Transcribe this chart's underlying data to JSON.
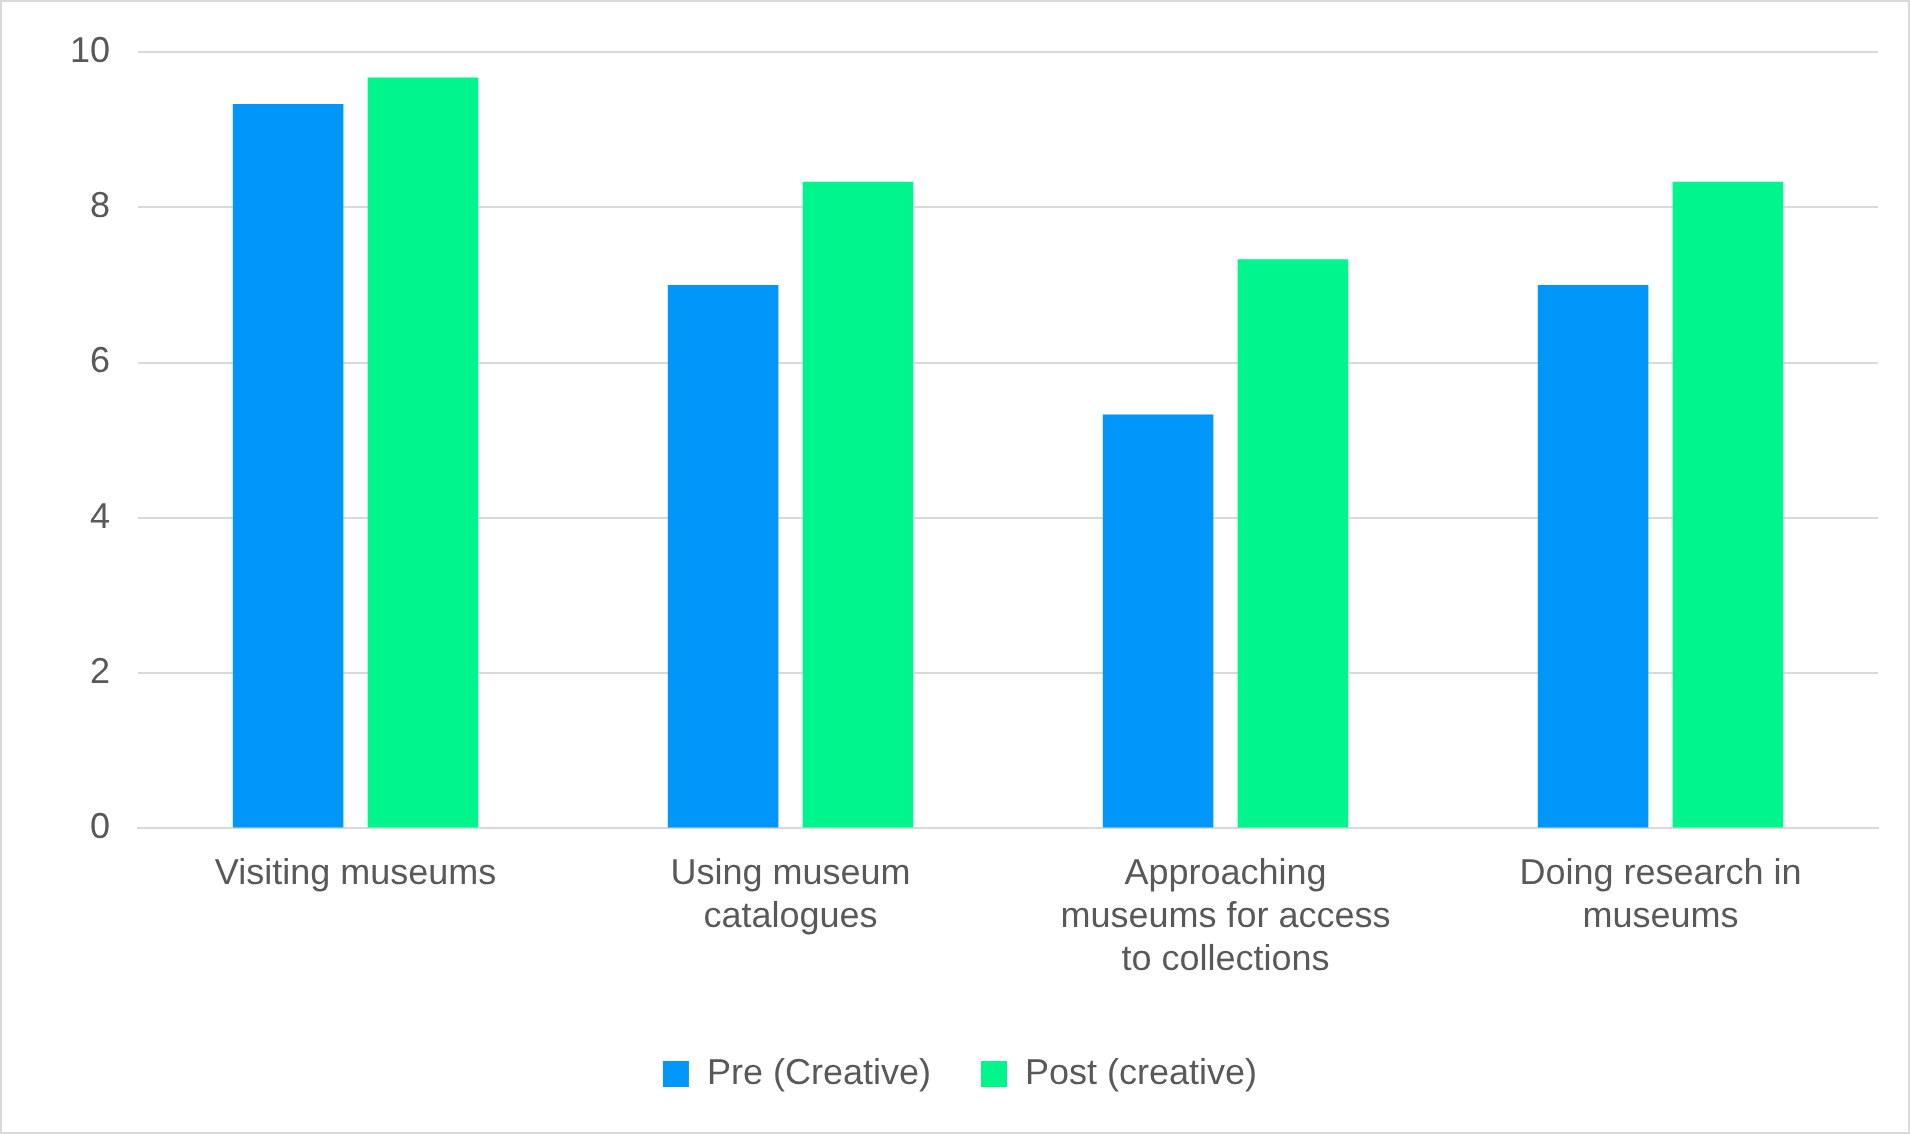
{
  "chart_data": {
    "type": "bar",
    "categories": [
      "Visiting museums",
      "Using museum catalogues",
      "Approaching museums for access to collections",
      "Doing research in museums"
    ],
    "series": [
      {
        "name": "Pre (Creative)",
        "color": "#0096fa",
        "values": [
          9.33,
          7,
          5.33,
          7
        ]
      },
      {
        "name": "Post (creative)",
        "color": "#00f58c",
        "values": [
          9.67,
          8.33,
          7.33,
          8.33
        ]
      }
    ],
    "ylim": [
      0,
      10
    ],
    "yticks": [
      0,
      2,
      4,
      6,
      8,
      10
    ],
    "grid": "y",
    "legend": "bottom"
  }
}
